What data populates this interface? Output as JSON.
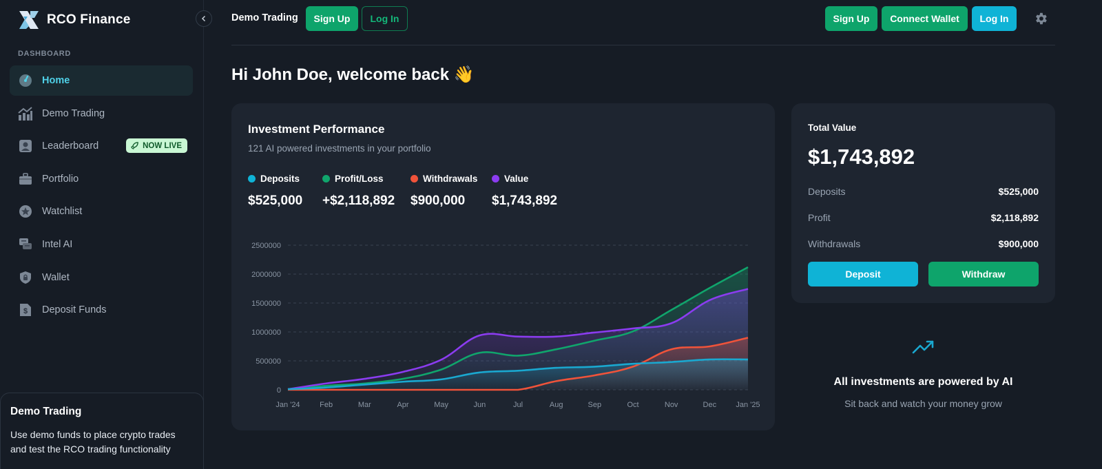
{
  "brand": {
    "name": "RCO Finance"
  },
  "sidebar": {
    "section_label": "DASHBOARD",
    "items": [
      {
        "label": "Home",
        "icon": "gauge-icon",
        "active": true
      },
      {
        "label": "Demo Trading",
        "icon": "trend-chart-icon"
      },
      {
        "label": "Leaderboard",
        "icon": "user-badge-icon",
        "badge": "NOW LIVE"
      },
      {
        "label": "Portfolio",
        "icon": "briefcase-icon"
      },
      {
        "label": "Watchlist",
        "icon": "star-icon"
      },
      {
        "label": "Intel AI",
        "icon": "chat-icon"
      },
      {
        "label": "Wallet",
        "icon": "lock-shield-icon"
      },
      {
        "label": "Deposit Funds",
        "icon": "dollar-document-icon"
      }
    ],
    "demo_card": {
      "title": "Demo Trading",
      "text": "Use demo funds to place crypto trades and test the RCO trading functionality"
    }
  },
  "topbar": {
    "title": "Demo Trading",
    "left_signup": "Sign Up",
    "left_login": "Log In",
    "signup": "Sign Up",
    "connect_wallet": "Connect Wallet",
    "login": "Log In"
  },
  "greeting": "Hi John Doe, welcome back 👋",
  "performance": {
    "title": "Investment Performance",
    "subtitle": "121 AI powered investments in your portfolio",
    "stats": [
      {
        "label": "Deposits",
        "value": "$525,000",
        "color": "#0fb3d6"
      },
      {
        "label": "Profit/Loss",
        "value": "+$2,118,892",
        "color": "#10a56c"
      },
      {
        "label": "Withdrawals",
        "value": "$900,000",
        "color": "#f0533a"
      },
      {
        "label": "Value",
        "value": "$1,743,892",
        "color": "#8b3cf0"
      }
    ]
  },
  "chart_data": {
    "type": "area",
    "categories": [
      "Jan '24",
      "Feb",
      "Mar",
      "Apr",
      "May",
      "Jun",
      "Jul",
      "Aug",
      "Sep",
      "Oct",
      "Nov",
      "Dec",
      "Jan '25"
    ],
    "ylim": [
      0,
      2500000
    ],
    "yticks": [
      "0",
      "500000",
      "1000000",
      "1500000",
      "2000000",
      "2500000"
    ],
    "grid": true,
    "series": [
      {
        "name": "Deposits",
        "color": "#1aa8d0",
        "values": [
          10000,
          40000,
          90000,
          140000,
          180000,
          300000,
          330000,
          380000,
          400000,
          450000,
          480000,
          525000,
          525000
        ]
      },
      {
        "name": "Profit/Loss",
        "color": "#10a56c",
        "values": [
          10000,
          70000,
          110000,
          190000,
          350000,
          640000,
          590000,
          700000,
          850000,
          1010000,
          1380000,
          1760000,
          2118892
        ]
      },
      {
        "name": "Withdrawals",
        "color": "#f0533a",
        "values": [
          0,
          0,
          0,
          0,
          0,
          0,
          0,
          150000,
          250000,
          400000,
          700000,
          750000,
          900000
        ]
      },
      {
        "name": "Value",
        "color": "#8b3cf0",
        "values": [
          10000,
          110000,
          190000,
          310000,
          520000,
          940000,
          920000,
          920000,
          990000,
          1060000,
          1150000,
          1550000,
          1743892
        ]
      }
    ]
  },
  "total": {
    "label": "Total Value",
    "value": "$1,743,892",
    "rows": [
      {
        "label": "Deposits",
        "value": "$525,000"
      },
      {
        "label": "Profit",
        "value": "$2,118,892"
      },
      {
        "label": "Withdrawals",
        "value": "$900,000"
      }
    ],
    "deposit_label": "Deposit",
    "withdraw_label": "Withdraw"
  },
  "ai": {
    "title": "All investments are powered by AI",
    "subtitle": "Sit back and watch your money grow"
  }
}
